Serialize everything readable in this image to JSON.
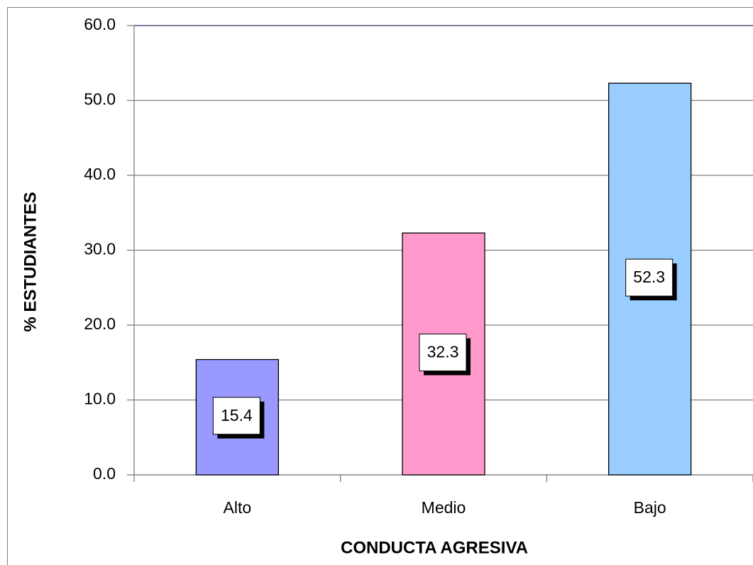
{
  "chart_data": {
    "type": "bar",
    "categories": [
      "Alto",
      "Medio",
      "Bajo"
    ],
    "values": [
      15.4,
      32.3,
      52.3
    ],
    "colors": [
      "#9999ff",
      "#ff99cc",
      "#99ccff"
    ],
    "xlabel": "CONDUCTA AGRESIVA",
    "ylabel": "% ESTUDIANTES",
    "ylim": [
      0,
      60
    ],
    "yticks": [
      {
        "value": 0,
        "label": "0.0"
      },
      {
        "value": 10,
        "label": "10.0"
      },
      {
        "value": 20,
        "label": "20.0"
      },
      {
        "value": 30,
        "label": "30.0"
      },
      {
        "value": 40,
        "label": "40.0"
      },
      {
        "value": 50,
        "label": "50.0"
      },
      {
        "value": 60,
        "label": "60.0"
      }
    ],
    "grid": true
  }
}
